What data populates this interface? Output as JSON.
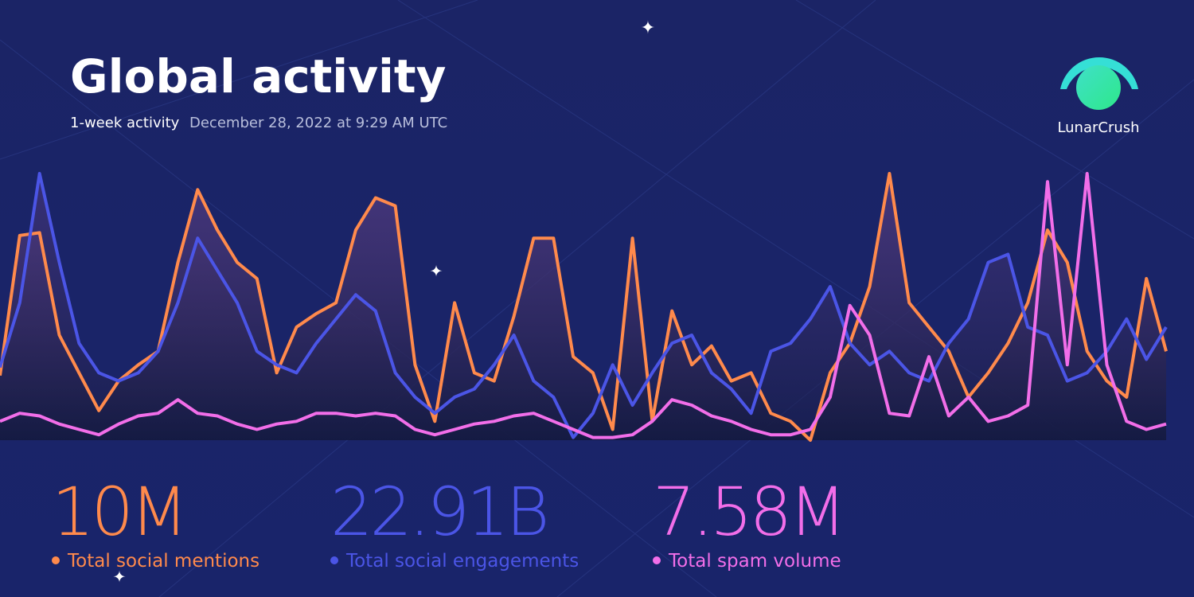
{
  "header": {
    "title": "Global activity",
    "period": "1-week activity",
    "timestamp": "December 28, 2022 at 9:29 AM UTC",
    "brand": "LunarCrush"
  },
  "chart_data": {
    "type": "line",
    "series": [
      {
        "name": "Total social mentions",
        "total": "10M",
        "color": "#ff8a4c",
        "values": [
          24,
          76,
          77,
          39,
          25,
          11,
          22,
          28,
          33,
          66,
          93,
          78,
          66,
          60,
          25,
          42,
          47,
          51,
          78,
          90,
          87,
          28,
          7,
          51,
          25,
          22,
          46,
          75,
          75,
          31,
          25,
          4,
          75,
          7,
          48,
          28,
          35,
          22,
          25,
          10,
          7,
          0,
          25,
          36,
          57,
          99,
          51,
          42,
          33,
          16,
          25,
          36,
          51,
          78,
          66,
          33,
          22,
          16,
          60,
          33
        ]
      },
      {
        "name": "Total social engagements",
        "total": "22.91B",
        "color": "#4b55e6",
        "values": [
          27,
          51,
          99,
          66,
          36,
          25,
          22,
          25,
          33,
          51,
          75,
          63,
          51,
          33,
          28,
          25,
          36,
          45,
          54,
          48,
          25,
          16,
          10,
          16,
          19,
          28,
          39,
          22,
          16,
          1,
          10,
          28,
          13,
          25,
          36,
          39,
          25,
          19,
          10,
          33,
          36,
          45,
          57,
          36,
          28,
          33,
          25,
          22,
          36,
          45,
          66,
          69,
          42,
          39,
          22,
          25,
          33,
          45,
          30,
          42
        ]
      },
      {
        "name": "Total spam volume",
        "total": "7.58M",
        "color": "#f26ee9",
        "values": [
          7,
          10,
          9,
          6,
          4,
          2,
          6,
          9,
          10,
          15,
          10,
          9,
          6,
          4,
          6,
          7,
          10,
          10,
          9,
          10,
          9,
          4,
          2,
          4,
          6,
          7,
          9,
          10,
          7,
          4,
          1,
          1,
          2,
          7,
          15,
          13,
          9,
          7,
          4,
          2,
          2,
          4,
          16,
          50,
          39,
          10,
          9,
          31,
          9,
          16,
          7,
          9,
          13,
          96,
          28,
          99,
          28,
          7,
          4,
          6
        ]
      }
    ]
  }
}
